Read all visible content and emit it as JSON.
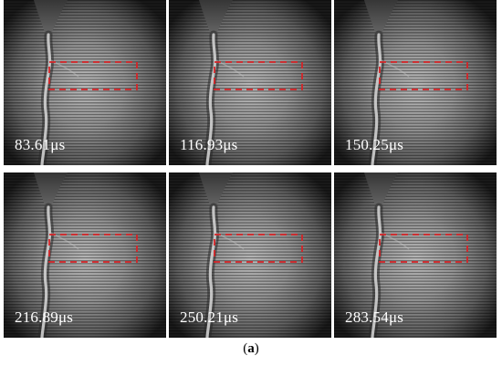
{
  "frames": [
    {
      "timestamp": "83.61μs"
    },
    {
      "timestamp": "116.93μs"
    },
    {
      "timestamp": "150.25μs"
    },
    {
      "timestamp": "216.89μs"
    },
    {
      "timestamp": "250.21μs"
    },
    {
      "timestamp": "283.54μs"
    }
  ],
  "caption": {
    "open": "(",
    "letter": "a",
    "close": ")"
  },
  "colors": {
    "roi_box": "#e3262a",
    "background_frame": "#2b2b2b",
    "label_text": "#ffffff"
  }
}
